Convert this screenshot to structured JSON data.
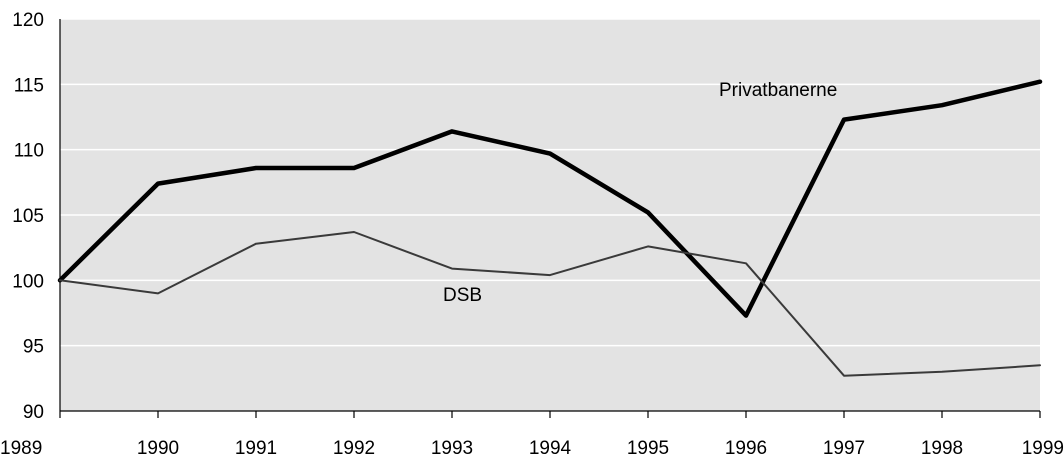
{
  "chart_data": {
    "type": "line",
    "x": [
      1989,
      1990,
      1991,
      1992,
      1993,
      1994,
      1995,
      1996,
      1997,
      1998,
      1999
    ],
    "x_tick_labels": [
      "1989",
      "1990",
      "1991",
      "1992",
      "1993",
      "1994",
      "1995",
      "1996",
      "1997",
      "1998",
      "1999"
    ],
    "ylim": [
      90,
      120
    ],
    "y_ticks": [
      90,
      95,
      100,
      105,
      110,
      115,
      120
    ],
    "y_tick_labels": [
      "90",
      "95",
      "100",
      "105",
      "110",
      "115",
      "120"
    ],
    "grid": true,
    "legend": "none",
    "series": [
      {
        "name": "Privatbanerne",
        "label": "Privatbanerne",
        "color": "#000000",
        "values": [
          100.0,
          107.4,
          108.6,
          108.6,
          111.4,
          109.7,
          105.2,
          97.3,
          112.3,
          113.4,
          115.2
        ]
      },
      {
        "name": "DSB",
        "label": "DSB",
        "color": "#3a3a3a",
        "values": [
          100.0,
          99.0,
          102.8,
          103.7,
          100.9,
          100.4,
          102.6,
          101.3,
          92.7,
          93.0,
          93.5
        ]
      }
    ],
    "colors": {
      "plot_background": "#e3e3e3",
      "gridline": "#ffffff",
      "axis": "#000000"
    }
  }
}
